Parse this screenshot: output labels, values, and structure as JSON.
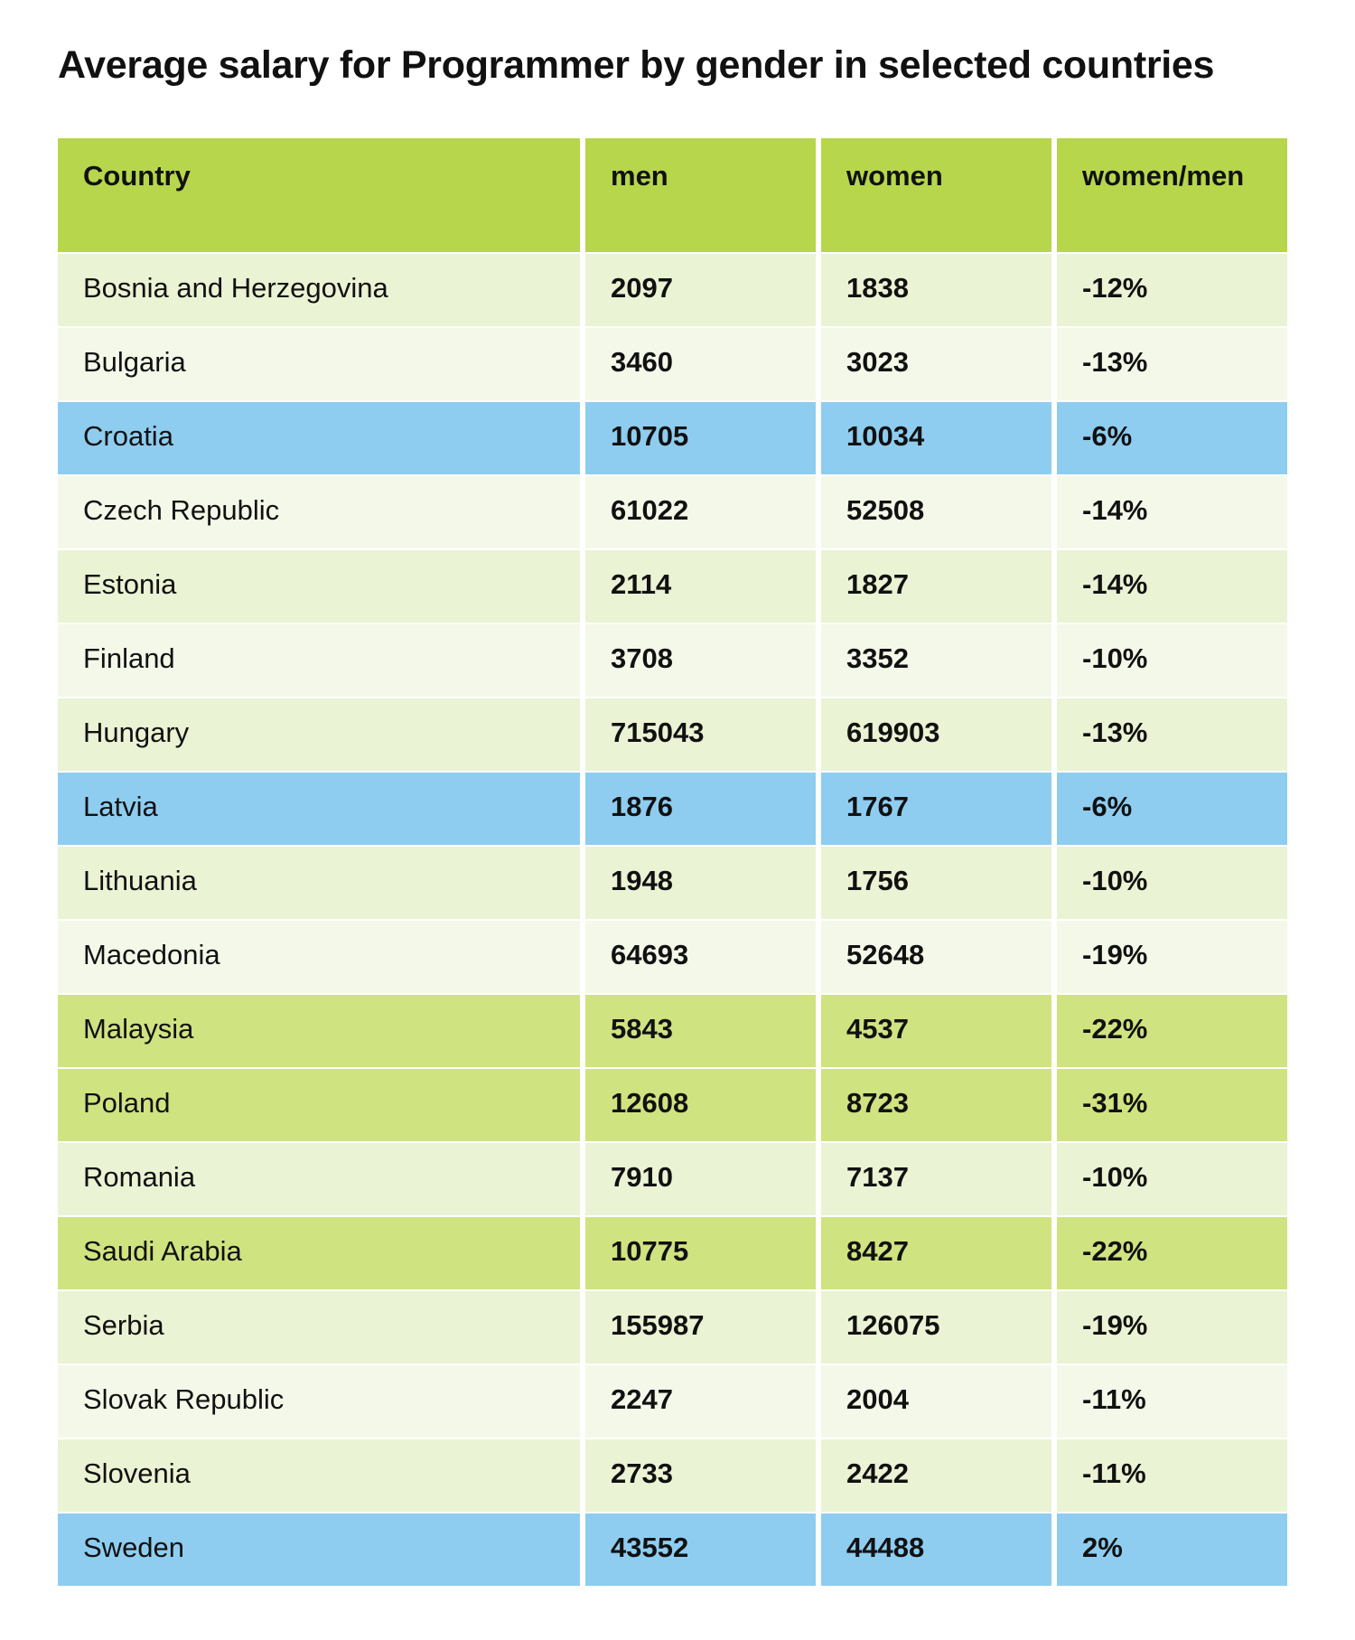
{
  "title": "Average salary for Programmer by gender in selected countries",
  "colors": {
    "header": "#b7d64b",
    "row_light": "#eaf3d3",
    "row_pale": "#f4f8e9",
    "row_blue": "#8ecdf0",
    "row_green": "#cfe381"
  },
  "chart_data": {
    "type": "table",
    "title": "Average salary for Programmer by gender in selected countries",
    "columns": [
      "Country",
      "men",
      "women",
      "women/men"
    ],
    "rows": [
      {
        "country": "Bosnia and Herzegovina",
        "men": "2097",
        "women": "1838",
        "ratio": "-12%",
        "style": "light"
      },
      {
        "country": "Bulgaria",
        "men": "3460",
        "women": "3023",
        "ratio": "-13%",
        "style": "pale"
      },
      {
        "country": "Croatia",
        "men": "10705",
        "women": "10034",
        "ratio": "-6%",
        "style": "blue"
      },
      {
        "country": "Czech Republic",
        "men": "61022",
        "women": "52508",
        "ratio": "-14%",
        "style": "pale"
      },
      {
        "country": "Estonia",
        "men": "2114",
        "women": "1827",
        "ratio": "-14%",
        "style": "light"
      },
      {
        "country": "Finland",
        "men": "3708",
        "women": "3352",
        "ratio": "-10%",
        "style": "pale"
      },
      {
        "country": "Hungary",
        "men": "715043",
        "women": "619903",
        "ratio": "-13%",
        "style": "light"
      },
      {
        "country": "Latvia",
        "men": "1876",
        "women": "1767",
        "ratio": "-6%",
        "style": "blue"
      },
      {
        "country": "Lithuania",
        "men": "1948",
        "women": "1756",
        "ratio": "-10%",
        "style": "light"
      },
      {
        "country": "Macedonia",
        "men": "64693",
        "women": "52648",
        "ratio": "-19%",
        "style": "pale"
      },
      {
        "country": "Malaysia",
        "men": "5843",
        "women": "4537",
        "ratio": "-22%",
        "style": "green"
      },
      {
        "country": "Poland",
        "men": "12608",
        "women": "8723",
        "ratio": "-31%",
        "style": "green"
      },
      {
        "country": "Romania",
        "men": "7910",
        "women": "7137",
        "ratio": "-10%",
        "style": "light"
      },
      {
        "country": "Saudi Arabia",
        "men": "10775",
        "women": "8427",
        "ratio": "-22%",
        "style": "green"
      },
      {
        "country": "Serbia",
        "men": "155987",
        "women": "126075",
        "ratio": "-19%",
        "style": "light"
      },
      {
        "country": "Slovak Republic",
        "men": "2247",
        "women": "2004",
        "ratio": "-11%",
        "style": "pale"
      },
      {
        "country": "Slovenia",
        "men": "2733",
        "women": "2422",
        "ratio": "-11%",
        "style": "light"
      },
      {
        "country": "Sweden",
        "men": "43552",
        "women": "44488",
        "ratio": "2%",
        "style": "blue"
      }
    ]
  }
}
